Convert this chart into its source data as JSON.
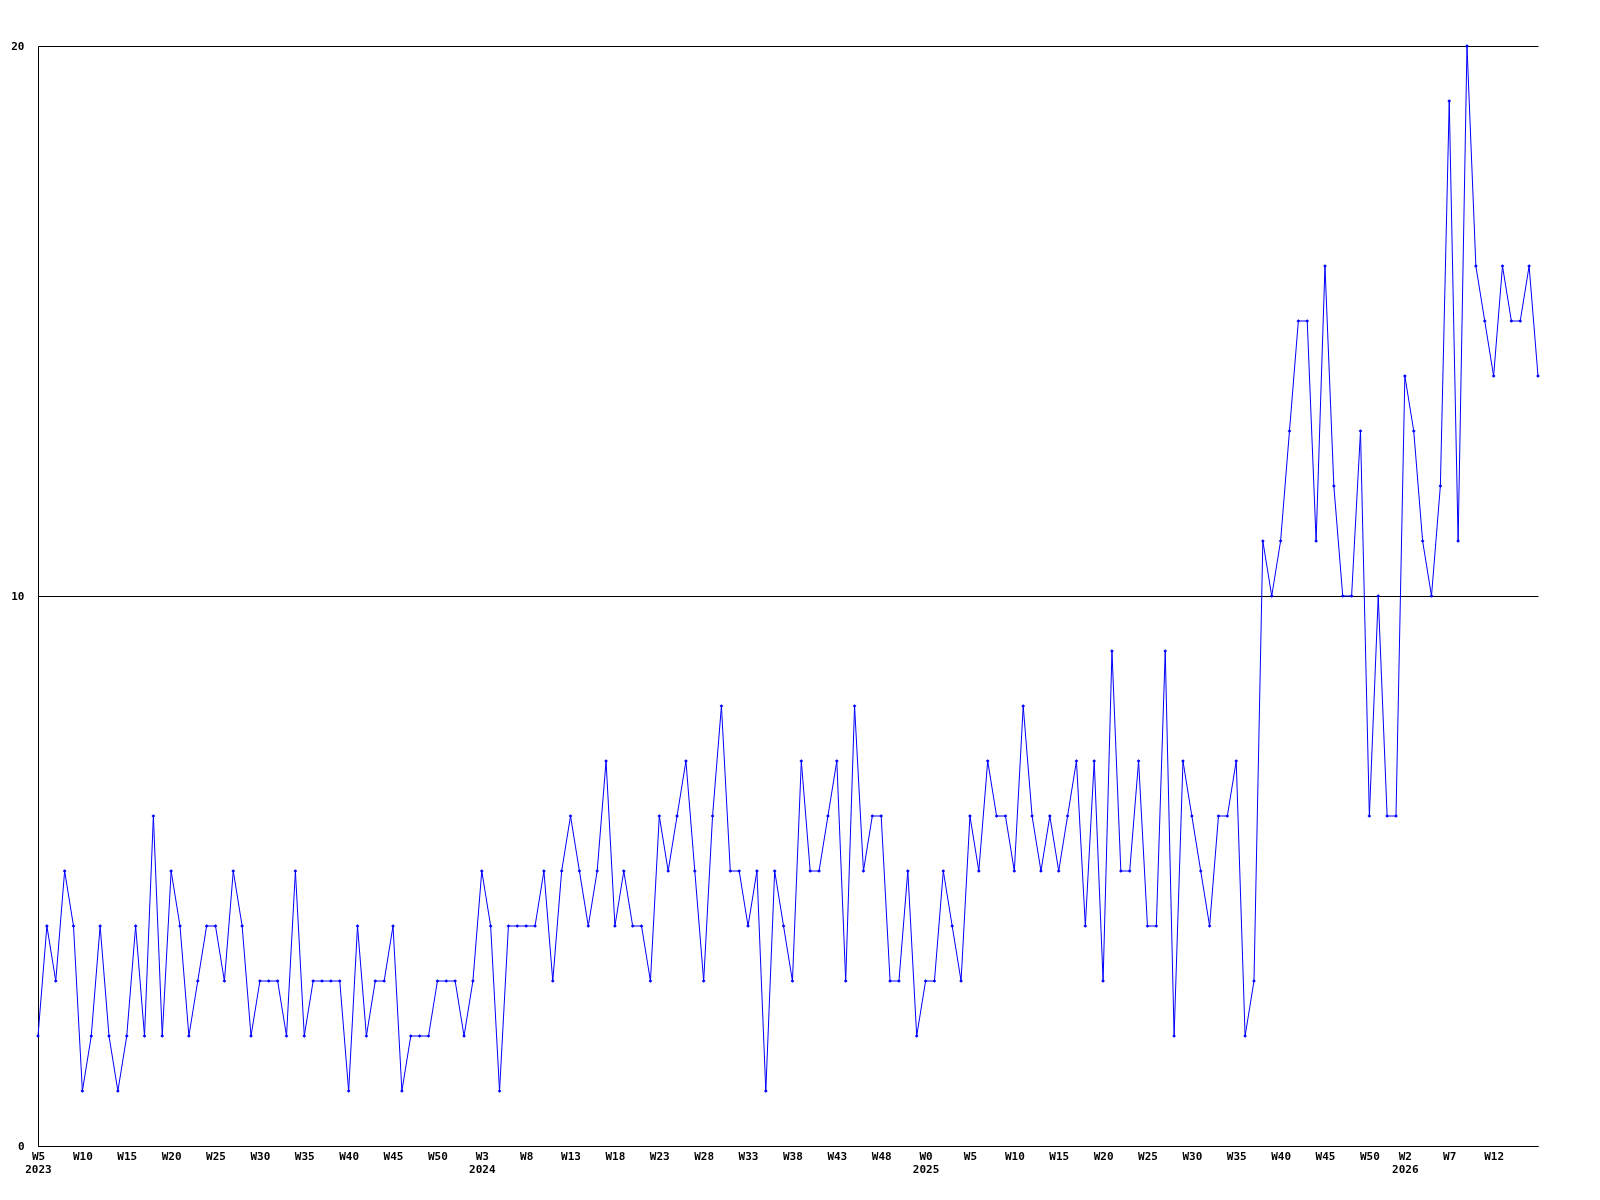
{
  "chart_data": {
    "type": "line",
    "categories": [
      "W5\n2023",
      null,
      null,
      null,
      null,
      "W10",
      null,
      null,
      null,
      null,
      "W15",
      null,
      null,
      null,
      null,
      "W20",
      null,
      null,
      null,
      null,
      "W25",
      null,
      null,
      null,
      null,
      "W30",
      null,
      null,
      null,
      null,
      "W35",
      null,
      null,
      null,
      null,
      "W40",
      null,
      null,
      null,
      null,
      "W45",
      null,
      null,
      null,
      null,
      "W50",
      null,
      null,
      null,
      null,
      "W3\n2024",
      null,
      null,
      null,
      null,
      "W8",
      null,
      null,
      null,
      null,
      "W13",
      null,
      null,
      null,
      null,
      "W18",
      null,
      null,
      null,
      null,
      "W23",
      null,
      null,
      null,
      null,
      "W28",
      null,
      null,
      null,
      null,
      "W33",
      null,
      null,
      null,
      null,
      "W38",
      null,
      null,
      null,
      null,
      "W43",
      null,
      null,
      null,
      null,
      "W48",
      null,
      null,
      null,
      null,
      "W0\n2025",
      null,
      null,
      null,
      null,
      "W5",
      null,
      null,
      null,
      null,
      "W10",
      null,
      null,
      null,
      null,
      "W15",
      null,
      null,
      null,
      null,
      "W20",
      null,
      null,
      null,
      null,
      "W25",
      null,
      null,
      null,
      null,
      "W30",
      null,
      null,
      null,
      null,
      "W35",
      null,
      null,
      null,
      null,
      "W40",
      null,
      null,
      null,
      null,
      "W45",
      null,
      null,
      null,
      null,
      "W50",
      null,
      null,
      null,
      "W2\n2026",
      null,
      null,
      null,
      null,
      "W7",
      null,
      null,
      null,
      null,
      "W12",
      null,
      null,
      null,
      null,
      null
    ],
    "series": [
      {
        "color": "#0000ff",
        "values": [
          2,
          4,
          3,
          5,
          4,
          1,
          2,
          4,
          2,
          1,
          2,
          4,
          2,
          6,
          2,
          5,
          4,
          2,
          3,
          4,
          4,
          3,
          5,
          4,
          2,
          3,
          3,
          3,
          2,
          5,
          2,
          3,
          3,
          3,
          3,
          1,
          4,
          2,
          3,
          3,
          4,
          1,
          2,
          2,
          2,
          3,
          3,
          3,
          2,
          3,
          5,
          4,
          1,
          4,
          4,
          4,
          4,
          5,
          3,
          5,
          6,
          5,
          4,
          5,
          7,
          4,
          5,
          4,
          4,
          3,
          6,
          5,
          6,
          7,
          5,
          3,
          6,
          8,
          5,
          5,
          4,
          5,
          1,
          5,
          4,
          3,
          7,
          5,
          5,
          6,
          7,
          3,
          8,
          5,
          6,
          6,
          3,
          3,
          5,
          2,
          3,
          3,
          5,
          4,
          3,
          6,
          5,
          7,
          6,
          6,
          5,
          8,
          6,
          5,
          6,
          5,
          6,
          7,
          4,
          7,
          3,
          9,
          5,
          5,
          7,
          4,
          4,
          9,
          2,
          7,
          6,
          5,
          4,
          6,
          6,
          7,
          2,
          3,
          11,
          10,
          11,
          13,
          15,
          15,
          11,
          16,
          12,
          10,
          10,
          13,
          6,
          10,
          6,
          6,
          14,
          13,
          11,
          10,
          12,
          19,
          11,
          20,
          16,
          15,
          14,
          16,
          15,
          15,
          16,
          14
        ]
      }
    ],
    "ylim": [
      0,
      20
    ],
    "yticks": [
      0,
      10,
      20
    ],
    "grid": "y",
    "marker": "diamond",
    "line_style": "solid"
  }
}
